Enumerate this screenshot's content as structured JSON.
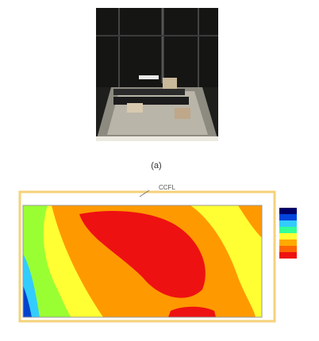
{
  "figure": {
    "photo_caption": "(a)",
    "annotation": "CCFL"
  }
}
